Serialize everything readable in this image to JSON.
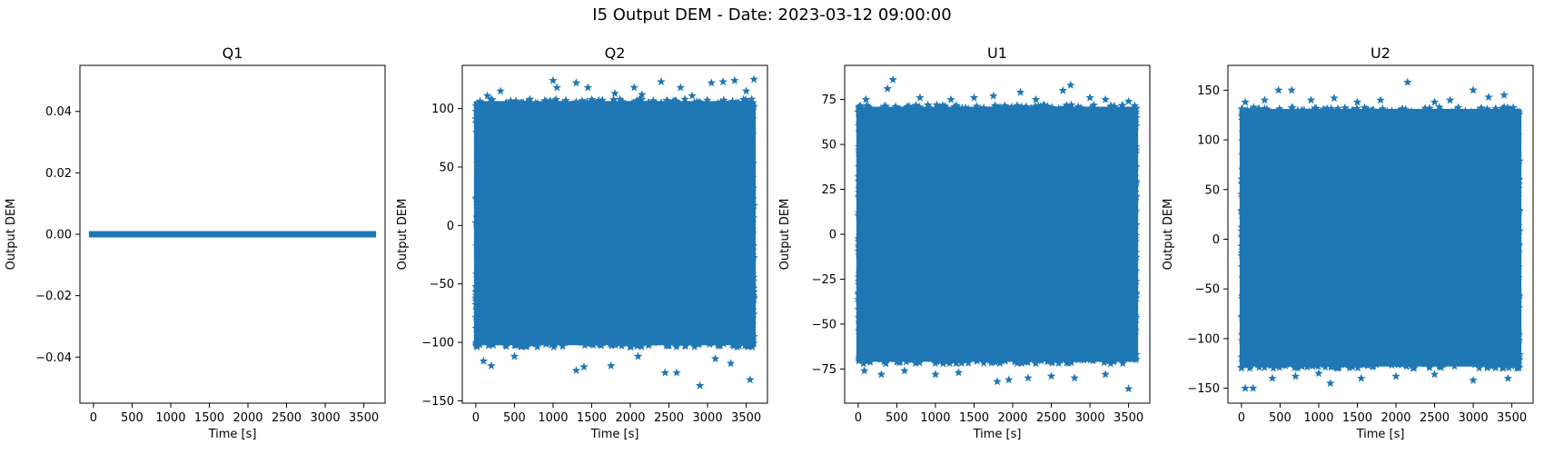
{
  "figure": {
    "suptitle": "I5 Output DEM - Date: 2023-03-12 09:00:00"
  },
  "style": {
    "marker_color": "#1f77b4",
    "marker": "star"
  },
  "chart_data": [
    {
      "type": "scatter",
      "title": "Q1",
      "xlabel": "Time [s]",
      "ylabel": "Output DEM",
      "xlim": [
        -175,
        3775
      ],
      "ylim": [
        -0.055,
        0.055
      ],
      "xticks": [
        0,
        500,
        1000,
        1500,
        2000,
        2500,
        3000,
        3500
      ],
      "xticklabels": [
        "0",
        "500",
        "1000",
        "1500",
        "2000",
        "2500",
        "3000",
        "3500"
      ],
      "yticks": [
        -0.04,
        -0.02,
        0.0,
        0.02,
        0.04
      ],
      "yticklabels": [
        "−0.04",
        "−0.02",
        "0.00",
        "0.02",
        "0.04"
      ],
      "series": [
        {
          "x_range": [
            0,
            3600
          ],
          "band": [
            0,
            0
          ],
          "outliers": []
        }
      ]
    },
    {
      "type": "scatter",
      "title": "Q2",
      "xlabel": "Time [s]",
      "ylabel": "Output DEM",
      "xlim": [
        -175,
        3775
      ],
      "ylim": [
        -152,
        137
      ],
      "xticks": [
        0,
        500,
        1000,
        1500,
        2000,
        2500,
        3000,
        3500
      ],
      "xticklabels": [
        "0",
        "500",
        "1000",
        "1500",
        "2000",
        "2500",
        "3000",
        "3500"
      ],
      "yticks": [
        -150,
        -100,
        -50,
        0,
        50,
        100
      ],
      "yticklabels": [
        "−150",
        "−100",
        "−50",
        "0",
        "50",
        "100"
      ],
      "series": [
        {
          "x_range": [
            0,
            3600
          ],
          "band": [
            -104,
            108
          ],
          "outliers": [
            [
              150,
              111
            ],
            [
              320,
              115
            ],
            [
              700,
              108
            ],
            [
              1000,
              124
            ],
            [
              1050,
              118
            ],
            [
              1300,
              122
            ],
            [
              1450,
              118
            ],
            [
              1800,
              113
            ],
            [
              2050,
              118
            ],
            [
              2150,
              112
            ],
            [
              2400,
              123
            ],
            [
              2650,
              118
            ],
            [
              2800,
              111
            ],
            [
              3050,
              122
            ],
            [
              3200,
              123
            ],
            [
              3350,
              124
            ],
            [
              3500,
              115
            ],
            [
              3600,
              125
            ],
            [
              100,
              -116
            ],
            [
              200,
              -120
            ],
            [
              500,
              -112
            ],
            [
              1300,
              -124
            ],
            [
              1400,
              -121
            ],
            [
              1750,
              -120
            ],
            [
              2100,
              -112
            ],
            [
              2450,
              -126
            ],
            [
              2600,
              -126
            ],
            [
              2900,
              -137
            ],
            [
              3100,
              -114
            ],
            [
              3300,
              -118
            ],
            [
              3550,
              -132
            ]
          ]
        }
      ]
    },
    {
      "type": "scatter",
      "title": "U1",
      "xlabel": "Time [s]",
      "ylabel": "Output DEM",
      "xlim": [
        -175,
        3775
      ],
      "ylim": [
        -94,
        94
      ],
      "xticks": [
        0,
        500,
        1000,
        1500,
        2000,
        2500,
        3000,
        3500
      ],
      "xticklabels": [
        "0",
        "500",
        "1000",
        "1500",
        "2000",
        "2500",
        "3000",
        "3500"
      ],
      "yticks": [
        -75,
        -50,
        -25,
        0,
        25,
        50,
        75
      ],
      "yticklabels": [
        "−75",
        "−50",
        "−25",
        "0",
        "25",
        "50",
        "75"
      ],
      "series": [
        {
          "x_range": [
            0,
            3600
          ],
          "band": [
            -72,
            72
          ],
          "outliers": [
            [
              100,
              75
            ],
            [
              380,
              81
            ],
            [
              450,
              86
            ],
            [
              800,
              76
            ],
            [
              1200,
              75
            ],
            [
              1500,
              76
            ],
            [
              1750,
              77
            ],
            [
              2100,
              79
            ],
            [
              2300,
              75
            ],
            [
              2650,
              80
            ],
            [
              2750,
              83
            ],
            [
              3000,
              76
            ],
            [
              3200,
              75
            ],
            [
              3500,
              74
            ],
            [
              80,
              -76
            ],
            [
              300,
              -78
            ],
            [
              600,
              -76
            ],
            [
              1000,
              -78
            ],
            [
              1300,
              -77
            ],
            [
              1800,
              -82
            ],
            [
              1950,
              -81
            ],
            [
              2200,
              -80
            ],
            [
              2500,
              -79
            ],
            [
              2800,
              -80
            ],
            [
              3200,
              -78
            ],
            [
              3500,
              -86
            ]
          ]
        }
      ]
    },
    {
      "type": "scatter",
      "title": "U2",
      "xlabel": "Time [s]",
      "ylabel": "Output DEM",
      "xlim": [
        -175,
        3775
      ],
      "ylim": [
        -165,
        175
      ],
      "xticks": [
        0,
        500,
        1000,
        1500,
        2000,
        2500,
        3000,
        3500
      ],
      "xticklabels": [
        "0",
        "500",
        "1000",
        "1500",
        "2000",
        "2500",
        "3000",
        "3500"
      ],
      "yticks": [
        -150,
        -100,
        -50,
        0,
        50,
        100,
        150
      ],
      "yticklabels": [
        "−150",
        "−100",
        "−50",
        "0",
        "50",
        "100",
        "150"
      ],
      "series": [
        {
          "x_range": [
            0,
            3600
          ],
          "band": [
            -130,
            133
          ],
          "outliers": [
            [
              50,
              138
            ],
            [
              300,
              140
            ],
            [
              480,
              150
            ],
            [
              650,
              150
            ],
            [
              900,
              140
            ],
            [
              1200,
              142
            ],
            [
              1500,
              138
            ],
            [
              1800,
              140
            ],
            [
              2150,
              158
            ],
            [
              2500,
              138
            ],
            [
              2700,
              140
            ],
            [
              3000,
              150
            ],
            [
              3200,
              143
            ],
            [
              3400,
              145
            ],
            [
              50,
              -150
            ],
            [
              150,
              -150
            ],
            [
              400,
              -140
            ],
            [
              700,
              -138
            ],
            [
              1000,
              -135
            ],
            [
              1150,
              -145
            ],
            [
              1550,
              -140
            ],
            [
              2000,
              -138
            ],
            [
              2500,
              -136
            ],
            [
              3000,
              -142
            ],
            [
              3450,
              -140
            ]
          ]
        }
      ]
    }
  ]
}
